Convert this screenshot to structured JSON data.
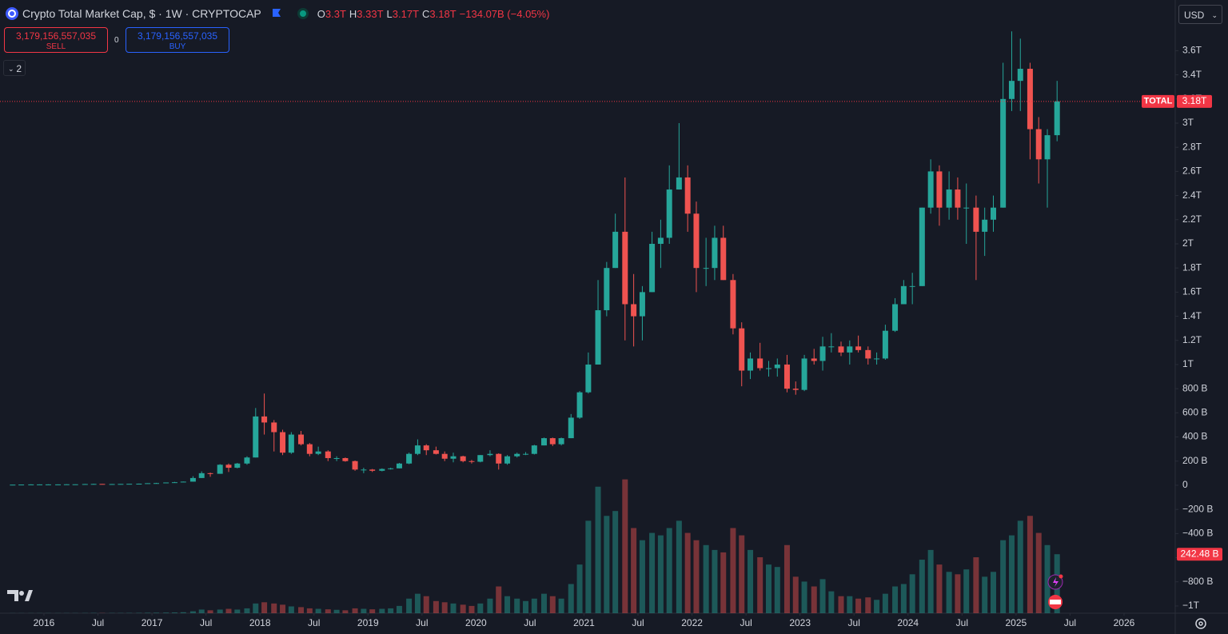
{
  "header": {
    "symbol": "Crypto Total Market Cap, $ · 1W · CRYPTOCAP",
    "ohlc": [
      {
        "key": "O",
        "value": "3.3T"
      },
      {
        "key": "H",
        "value": "3.33T"
      },
      {
        "key": "L",
        "value": "3.17T"
      },
      {
        "key": "C",
        "value": "3.18T"
      }
    ],
    "change": "−134.07B (−4.05%)",
    "sell": {
      "price": "3,179,156,557,035",
      "label": "SELL"
    },
    "spread": "0",
    "buy": {
      "price": "3,179,156,557,035",
      "label": "BUY"
    },
    "indicators": "2",
    "currency": "USD"
  },
  "chart_data": {
    "type": "candlestick",
    "up_color": "#26a69a",
    "down_color": "#ef5350",
    "xlim": [
      2015.593,
      2026.474
    ],
    "ylim": [
      -1060000000000.0,
      4020000000000.0
    ],
    "volume_lim": [
      0,
      2520000000000.0
    ],
    "grid": false,
    "xticks": [
      2016,
      {
        "value": 2016.5,
        "label": "Jul"
      },
      2017,
      {
        "value": 2017.5,
        "label": "Jul"
      },
      2018,
      {
        "value": 2018.5,
        "label": "Jul"
      },
      2019,
      {
        "value": 2019.5,
        "label": "Jul"
      },
      2020,
      {
        "value": 2020.5,
        "label": "Jul"
      },
      2021,
      {
        "value": 2021.5,
        "label": "Jul"
      },
      2022,
      {
        "value": 2022.5,
        "label": "Jul"
      },
      2023,
      {
        "value": 2023.5,
        "label": "Jul"
      },
      2024,
      {
        "value": 2024.5,
        "label": "Jul"
      },
      2025,
      {
        "value": 2025.5,
        "label": "Jul"
      },
      2026
    ],
    "yticks": [
      {
        "value": -1000000000000.0,
        "label": "−1T"
      },
      {
        "value": -800000000000.0,
        "label": "−800 B"
      },
      {
        "value": -600000000000.0,
        "label": "−600 B"
      },
      {
        "value": -400000000000.0,
        "label": "−400 B"
      },
      {
        "value": -200000000000.0,
        "label": "−200 B"
      },
      0,
      {
        "value": 200000000000.0,
        "label": "200 B"
      },
      {
        "value": 400000000000.0,
        "label": "400 B"
      },
      {
        "value": 600000000000.0,
        "label": "600 B"
      },
      {
        "value": 800000000000.0,
        "label": "800 B"
      },
      {
        "value": 1000000000000.0,
        "label": "1T"
      },
      {
        "value": 1200000000000.0,
        "label": "1.2T"
      },
      {
        "value": 1400000000000.0,
        "label": "1.4T"
      },
      {
        "value": 1600000000000.0,
        "label": "1.6T"
      },
      {
        "value": 1800000000000.0,
        "label": "1.8T"
      },
      {
        "value": 2000000000000.0,
        "label": "2T"
      },
      {
        "value": 2200000000000.0,
        "label": "2.2T"
      },
      {
        "value": 2400000000000.0,
        "label": "2.4T"
      },
      {
        "value": 2600000000000.0,
        "label": "2.6T"
      },
      {
        "value": 2800000000000.0,
        "label": "2.8T"
      },
      {
        "value": 3000000000000.0,
        "label": "3T"
      },
      {
        "value": 3200000000000.0,
        "label": "3.2T"
      },
      {
        "value": 3400000000000.0,
        "label": "3.4T"
      },
      {
        "value": 3600000000000.0,
        "label": "3.6T"
      }
    ],
    "x": [
      2015.71,
      2015.79,
      2015.88,
      2015.96,
      2016.04,
      2016.13,
      2016.21,
      2016.29,
      2016.38,
      2016.46,
      2016.54,
      2016.63,
      2016.71,
      2016.79,
      2016.88,
      2016.96,
      2017.04,
      2017.13,
      2017.21,
      2017.29,
      2017.38,
      2017.46,
      2017.54,
      2017.63,
      2017.71,
      2017.79,
      2017.88,
      2017.96,
      2018.04,
      2018.13,
      2018.21,
      2018.29,
      2018.38,
      2018.46,
      2018.54,
      2018.63,
      2018.71,
      2018.79,
      2018.88,
      2018.96,
      2019.04,
      2019.13,
      2019.21,
      2019.29,
      2019.38,
      2019.46,
      2019.54,
      2019.63,
      2019.71,
      2019.79,
      2019.88,
      2019.96,
      2020.04,
      2020.13,
      2020.21,
      2020.29,
      2020.38,
      2020.46,
      2020.54,
      2020.63,
      2020.71,
      2020.79,
      2020.88,
      2020.96,
      2021.04,
      2021.13,
      2021.21,
      2021.29,
      2021.38,
      2021.46,
      2021.54,
      2021.63,
      2021.71,
      2021.79,
      2021.88,
      2021.96,
      2022.04,
      2022.13,
      2022.21,
      2022.29,
      2022.38,
      2022.46,
      2022.54,
      2022.63,
      2022.71,
      2022.79,
      2022.88,
      2022.96,
      2023.04,
      2023.13,
      2023.21,
      2023.29,
      2023.38,
      2023.46,
      2023.54,
      2023.63,
      2023.71,
      2023.79,
      2023.88,
      2023.96,
      2024.04,
      2024.13,
      2024.21,
      2024.29,
      2024.38,
      2024.46,
      2024.54,
      2024.63,
      2024.71,
      2024.79,
      2024.88,
      2024.96,
      2025.04,
      2025.13,
      2025.21,
      2025.29,
      2025.38
    ],
    "open": [
      4000000000.0,
      5000000000.0,
      6000000000.0,
      7000000000.0,
      7000000000.0,
      7000000000.0,
      7000000000.0,
      8000000000.0,
      8000000000.0,
      10000000000.0,
      11000000000.0,
      10000000000.0,
      10000000000.0,
      11000000000.0,
      12000000000.0,
      13000000000.0,
      17000000000.0,
      18000000000.0,
      23000000000.0,
      25000000000.0,
      30000000000.0,
      60000000000.0,
      100000000000.0,
      95000000000.0,
      170000000000.0,
      145000000000.0,
      180000000000.0,
      230000000000.0,
      570000000000.0,
      520000000000.0,
      440000000000.0,
      270000000000.0,
      420000000000.0,
      340000000000.0,
      260000000000.0,
      280000000000.0,
      225000000000.0,
      225000000000.0,
      200000000000.0,
      130000000000.0,
      130000000000.0,
      120000000000.0,
      135000000000.0,
      140000000000.0,
      180000000000.0,
      260000000000.0,
      330000000000.0,
      290000000000.0,
      260000000000.0,
      220000000000.0,
      240000000000.0,
      200000000000.0,
      195000000000.0,
      250000000000.0,
      260000000000.0,
      180000000000.0,
      240000000000.0,
      260000000000.0,
      260000000000.0,
      330000000000.0,
      390000000000.0,
      340000000000.0,
      390000000000.0,
      560000000000.0,
      770000000000.0,
      1000000000000.0,
      1450000000000.0,
      1800000000000.0,
      2100000000000.0,
      1500000000000.0,
      1400000000000.0,
      1600000000000.0,
      2000000000000.0,
      2050000000000.0,
      2450000000000.0,
      2550000000000.0,
      2250000000000.0,
      1800000000000.0,
      1800000000000.0,
      2050000000000.0,
      1700000000000.0,
      1300000000000.0,
      950000000000.0,
      1050000000000.0,
      970000000000.0,
      970000000000.0,
      1000000000000.0,
      800000000000.0,
      790000000000.0,
      1050000000000.0,
      1030000000000.0,
      1150000000000.0,
      1150000000000.0,
      1100000000000.0,
      1150000000000.0,
      1120000000000.0,
      1050000000000.0,
      1050000000000.0,
      1280000000000.0,
      1500000000000.0,
      1650000000000.0,
      1650000000000.0,
      2300000000000.0,
      2600000000000.0,
      2300000000000.0,
      2450000000000.0,
      2300000000000.0,
      2300000000000.0,
      2100000000000.0,
      2200000000000.0,
      2300000000000.0,
      3200000000000.0,
      3350000000000.0,
      3450000000000.0,
      2950000000000.0,
      2700000000000.0,
      2900000000000.0
    ],
    "high": [
      5000000000.0,
      6000000000.0,
      8000000000.0,
      8000000000.0,
      8000000000.0,
      8000000000.0,
      9000000000.0,
      9000000000.0,
      11000000000.0,
      13000000000.0,
      11000000000.0,
      11000000000.0,
      11000000000.0,
      12000000000.0,
      14000000000.0,
      17000000000.0,
      20000000000.0,
      23000000000.0,
      28000000000.0,
      31000000000.0,
      75000000000.0,
      115000000000.0,
      105000000000.0,
      175000000000.0,
      180000000000.0,
      185000000000.0,
      240000000000.0,
      640000000000.0,
      760000000000.0,
      540000000000.0,
      460000000000.0,
      440000000000.0,
      450000000000.0,
      350000000000.0,
      320000000000.0,
      290000000000.0,
      240000000000.0,
      230000000000.0,
      205000000000.0,
      145000000000.0,
      135000000000.0,
      140000000000.0,
      145000000000.0,
      185000000000.0,
      270000000000.0,
      380000000000.0,
      340000000000.0,
      320000000000.0,
      280000000000.0,
      270000000000.0,
      245000000000.0,
      210000000000.0,
      250000000000.0,
      290000000000.0,
      265000000000.0,
      250000000000.0,
      270000000000.0,
      275000000000.0,
      335000000000.0,
      395000000000.0,
      395000000000.0,
      395000000000.0,
      590000000000.0,
      780000000000.0,
      1100000000000.0,
      1700000000000.0,
      1850000000000.0,
      2250000000000.0,
      2550000000000.0,
      1750000000000.0,
      1650000000000.0,
      2100000000000.0,
      2200000000000.0,
      2650000000000.0,
      3000000000000.0,
      2650000000000.0,
      2350000000000.0,
      2050000000000.0,
      2150000000000.0,
      2150000000000.0,
      1750000000000.0,
      1350000000000.0,
      1100000000000.0,
      1180000000000.0,
      1030000000000.0,
      1050000000000.0,
      1080000000000.0,
      860000000000.0,
      1080000000000.0,
      1130000000000.0,
      1230000000000.0,
      1260000000000.0,
      1190000000000.0,
      1200000000000.0,
      1240000000000.0,
      1150000000000.0,
      1100000000000.0,
      1330000000000.0,
      1550000000000.0,
      1700000000000.0,
      1760000000000.0,
      2300000000000.0,
      2700000000000.0,
      2650000000000.0,
      2600000000000.0,
      2550000000000.0,
      2500000000000.0,
      2400000000000.0,
      2300000000000.0,
      2400000000000.0,
      3500000000000.0,
      3760000000000.0,
      3700000000000.0,
      3500000000000.0,
      3050000000000.0,
      2950000000000.0,
      3350000000000.0
    ],
    "low": [
      4000000000.0,
      5000000000.0,
      6000000000.0,
      7000000000.0,
      6000000000.0,
      7000000000.0,
      7000000000.0,
      8000000000.0,
      8000000000.0,
      10000000000.0,
      9000000000.0,
      10000000000.0,
      10000000000.0,
      11000000000.0,
      12000000000.0,
      13000000000.0,
      15000000000.0,
      18000000000.0,
      20000000000.0,
      25000000000.0,
      30000000000.0,
      60000000000.0,
      70000000000.0,
      95000000000.0,
      110000000000.0,
      140000000000.0,
      170000000000.0,
      230000000000.0,
      420000000000.0,
      280000000000.0,
      250000000000.0,
      260000000000.0,
      330000000000.0,
      240000000000.0,
      250000000000.0,
      200000000000.0,
      200000000000.0,
      195000000000.0,
      120000000000.0,
      100000000000.0,
      110000000000.0,
      115000000000.0,
      130000000000.0,
      140000000000.0,
      175000000000.0,
      250000000000.0,
      250000000000.0,
      255000000000.0,
      200000000000.0,
      190000000000.0,
      190000000000.0,
      180000000000.0,
      190000000000.0,
      240000000000.0,
      130000000000.0,
      170000000000.0,
      230000000000.0,
      250000000000.0,
      255000000000.0,
      330000000000.0,
      325000000000.0,
      330000000000.0,
      390000000000.0,
      550000000000.0,
      760000000000.0,
      1000000000000.0,
      1400000000000.0,
      1800000000000.0,
      1200000000000.0,
      1150000000000.0,
      1200000000000.0,
      1600000000000.0,
      1800000000000.0,
      2000000000000.0,
      2450000000000.0,
      2100000000000.0,
      1600000000000.0,
      1650000000000.0,
      1700000000000.0,
      1700000000000.0,
      1250000000000.0,
      820000000000.0,
      880000000000.0,
      950000000000.0,
      900000000000.0,
      900000000000.0,
      770000000000.0,
      750000000000.0,
      780000000000.0,
      1000000000000.0,
      950000000000.0,
      1100000000000.0,
      1070000000000.0,
      1000000000000.0,
      1100000000000.0,
      1000000000000.0,
      1000000000000.0,
      1040000000000.0,
      1270000000000.0,
      1500000000000.0,
      1500000000000.0,
      1650000000000.0,
      2250000000000.0,
      2150000000000.0,
      2200000000000.0,
      2200000000000.0,
      2000000000000.0,
      1700000000000.0,
      1900000000000.0,
      2100000000000.0,
      2300000000000.0,
      3100000000000.0,
      3100000000000.0,
      2700000000000.0,
      2500000000000.0,
      2300000000000.0,
      2850000000000.0
    ],
    "close": [
      5000000000.0,
      6000000000.0,
      7000000000.0,
      7000000000.0,
      7000000000.0,
      7000000000.0,
      8000000000.0,
      8000000000.0,
      10000000000.0,
      11000000000.0,
      10000000000.0,
      10000000000.0,
      11000000000.0,
      12000000000.0,
      13000000000.0,
      17000000000.0,
      18000000000.0,
      23000000000.0,
      25000000000.0,
      30000000000.0,
      60000000000.0,
      100000000000.0,
      95000000000.0,
      170000000000.0,
      145000000000.0,
      180000000000.0,
      230000000000.0,
      570000000000.0,
      520000000000.0,
      440000000000.0,
      270000000000.0,
      420000000000.0,
      340000000000.0,
      260000000000.0,
      280000000000.0,
      225000000000.0,
      225000000000.0,
      200000000000.0,
      130000000000.0,
      130000000000.0,
      120000000000.0,
      135000000000.0,
      140000000000.0,
      180000000000.0,
      260000000000.0,
      330000000000.0,
      290000000000.0,
      260000000000.0,
      220000000000.0,
      240000000000.0,
      200000000000.0,
      195000000000.0,
      250000000000.0,
      260000000000.0,
      180000000000.0,
      240000000000.0,
      260000000000.0,
      260000000000.0,
      330000000000.0,
      390000000000.0,
      340000000000.0,
      390000000000.0,
      560000000000.0,
      770000000000.0,
      1000000000000.0,
      1450000000000.0,
      1800000000000.0,
      2100000000000.0,
      1500000000000.0,
      1400000000000.0,
      1600000000000.0,
      2000000000000.0,
      2050000000000.0,
      2450000000000.0,
      2550000000000.0,
      2250000000000.0,
      1800000000000.0,
      1800000000000.0,
      2050000000000.0,
      1700000000000.0,
      1300000000000.0,
      950000000000.0,
      1050000000000.0,
      970000000000.0,
      970000000000.0,
      1000000000000.0,
      800000000000.0,
      790000000000.0,
      1050000000000.0,
      1030000000000.0,
      1150000000000.0,
      1150000000000.0,
      1100000000000.0,
      1150000000000.0,
      1120000000000.0,
      1050000000000.0,
      1050000000000.0,
      1280000000000.0,
      1500000000000.0,
      1650000000000.0,
      1650000000000.0,
      2300000000000.0,
      2600000000000.0,
      2300000000000.0,
      2450000000000.0,
      2300000000000.0,
      2300000000000.0,
      2100000000000.0,
      2200000000000.0,
      2300000000000.0,
      3200000000000.0,
      3350000000000.0,
      3450000000000.0,
      2950000000000.0,
      2700000000000.0,
      2900000000000.0,
      3180000000000.0
    ],
    "volume": [
      500000000.0,
      500000000.0,
      600000000.0,
      600000000.0,
      600000000.0,
      600000000.0,
      700000000.0,
      700000000.0,
      900000000.0,
      1200000000.0,
      1000000000.0,
      1000000000.0,
      1000000000.0,
      1200000000.0,
      1400000000.0,
      1800000000.0,
      2000000000.0,
      2500000000.0,
      3000000000.0,
      4000000000.0,
      8000000000.0,
      15000000000.0,
      12000000000.0,
      15000000000.0,
      18000000000.0,
      15000000000.0,
      20000000000.0,
      40000000000.0,
      45000000000.0,
      40000000000.0,
      35000000000.0,
      28000000000.0,
      25000000000.0,
      20000000000.0,
      18000000000.0,
      16000000000.0,
      14000000000.0,
      12000000000.0,
      20000000000.0,
      18000000000.0,
      16000000000.0,
      18000000000.0,
      20000000000.0,
      30000000000.0,
      60000000000.0,
      80000000000.0,
      70000000000.0,
      50000000000.0,
      45000000000.0,
      40000000000.0,
      35000000000.0,
      30000000000.0,
      40000000000.0,
      60000000000.0,
      110000000000.0,
      70000000000.0,
      60000000000.0,
      50000000000.0,
      60000000000.0,
      80000000000.0,
      70000000000.0,
      60000000000.0,
      120000000000.0,
      200000000000.0,
      380000000000.0,
      520000000000.0,
      400000000000.0,
      420000000000.0,
      550000000000.0,
      350000000000.0,
      300000000000.0,
      330000000000.0,
      320000000000.0,
      350000000000.0,
      380000000000.0,
      330000000000.0,
      300000000000.0,
      280000000000.0,
      260000000000.0,
      250000000000.0,
      350000000000.0,
      320000000000.0,
      260000000000.0,
      230000000000.0,
      200000000000.0,
      190000000000.0,
      280000000000.0,
      150000000000.0,
      130000000000.0,
      110000000000.0,
      140000000000.0,
      90000000000.0,
      70000000000.0,
      70000000000.0,
      60000000000.0,
      65000000000.0,
      55000000000.0,
      80000000000.0,
      110000000000.0,
      120000000000.0,
      160000000000.0,
      220000000000.0,
      260000000000.0,
      200000000000.0,
      170000000000.0,
      160000000000.0,
      180000000000.0,
      230000000000.0,
      150000000000.0,
      170000000000.0,
      300000000000.0,
      320000000000.0,
      380000000000.0,
      400000000000.0,
      330000000000.0,
      280000000000.0,
      242480000000.0
    ],
    "price_line": {
      "name": "TOTAL",
      "value": 3180000000000.0,
      "label": "3.18T",
      "color": "#f23645"
    },
    "last_volume": {
      "value": 242480000000.0,
      "label": "242.48 B",
      "color": "#f23645"
    }
  }
}
